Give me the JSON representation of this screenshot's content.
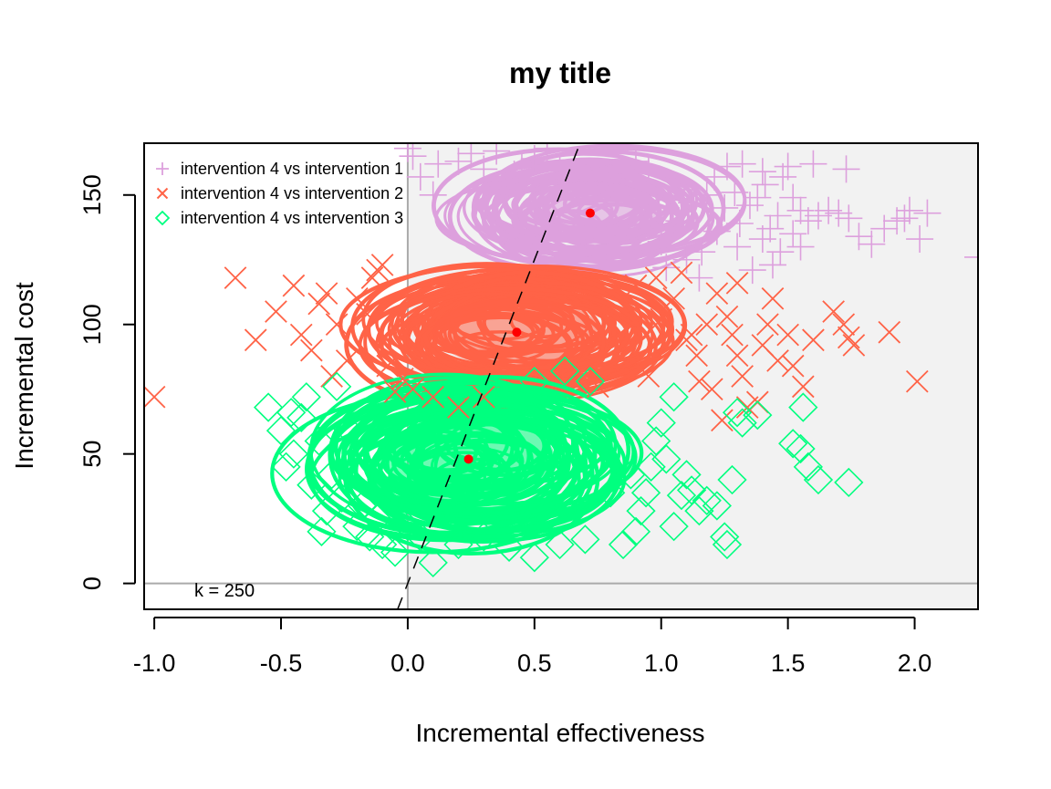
{
  "chart_data": {
    "type": "scatter",
    "title": "my title",
    "xlabel": "Incremental effectiveness",
    "ylabel": "Incremental cost",
    "xlim": [
      -1.04,
      2.25
    ],
    "ylim": [
      -10,
      170
    ],
    "x_ticks": [
      -1.0,
      -0.5,
      0.0,
      0.5,
      1.0,
      1.5,
      2.0
    ],
    "x_tick_labels": [
      "-1.0",
      "-0.5",
      "0.0",
      "0.5",
      "1.0",
      "1.5",
      "2.0"
    ],
    "y_ticks": [
      0,
      50,
      100,
      150
    ],
    "y_tick_labels": [
      "0",
      "50",
      "100",
      "150"
    ],
    "wtp_line": {
      "label": "k = 250",
      "slope": 250
    },
    "shaded_region": {
      "x_from": 0,
      "color": "#f2f2f2"
    },
    "mean_point_color": "#ff0000",
    "legend_position": "top-left",
    "series": [
      {
        "name": "intervention 4 vs intervention 1",
        "marker": "plus",
        "color": "#dda0dd",
        "mean": {
          "x": 0.72,
          "y": 143
        },
        "points": [
          [
            1.03,
            148
          ],
          [
            1.09,
            152
          ],
          [
            1.12,
            147
          ],
          [
            1.18,
            150
          ],
          [
            1.21,
            157
          ],
          [
            1.25,
            145
          ],
          [
            1.29,
            151
          ],
          [
            1.31,
            139
          ],
          [
            1.35,
            146
          ],
          [
            1.38,
            149
          ],
          [
            1.41,
            154
          ],
          [
            1.43,
            137
          ],
          [
            1.46,
            142
          ],
          [
            1.48,
            157
          ],
          [
            1.52,
            149
          ],
          [
            1.55,
            144
          ],
          [
            1.58,
            140
          ],
          [
            1.62,
            142
          ],
          [
            1.66,
            144
          ],
          [
            1.7,
            143
          ],
          [
            1.74,
            141
          ],
          [
            1.78,
            134
          ],
          [
            1.83,
            131
          ],
          [
            1.88,
            137
          ],
          [
            1.93,
            140
          ],
          [
            1.96,
            141
          ],
          [
            1.98,
            144
          ],
          [
            2.05,
            143
          ],
          [
            2.02,
            133
          ],
          [
            1.55,
            130
          ],
          [
            1.47,
            128
          ],
          [
            1.4,
            133
          ],
          [
            1.3,
            130
          ],
          [
            1.22,
            136
          ],
          [
            1.16,
            128
          ],
          [
            1.1,
            125
          ],
          [
            1.02,
            122
          ],
          [
            1.15,
            118
          ],
          [
            1.36,
            121
          ],
          [
            1.44,
            123
          ],
          [
            1.6,
            162
          ],
          [
            1.73,
            160
          ],
          [
            1.5,
            161
          ],
          [
            1.4,
            159
          ],
          [
            1.32,
            162
          ],
          [
            1.26,
            161
          ],
          [
            2.25,
            126
          ],
          [
            1.52,
            135
          ],
          [
            1.07,
            140
          ],
          [
            1.0,
            132
          ],
          [
            0.95,
            160
          ],
          [
            0.9,
            163
          ],
          [
            0.85,
            157
          ],
          [
            0.6,
            160
          ],
          [
            0.5,
            164
          ],
          [
            0.42,
            158
          ],
          [
            0.3,
            160
          ],
          [
            0.2,
            163
          ],
          [
            0.12,
            162
          ],
          [
            0.05,
            157
          ],
          [
            0.02,
            165
          ],
          [
            0.1,
            150
          ],
          [
            0.0,
            168
          ],
          [
            0.25,
            166
          ],
          [
            0.35,
            167
          ],
          [
            0.45,
            161
          ],
          [
            0.55,
            168
          ]
        ]
      },
      {
        "name": "intervention 4 vs intervention 2",
        "marker": "cross",
        "color": "#ff6347",
        "mean": {
          "x": 0.43,
          "y": 97
        },
        "points": [
          [
            -1.0,
            72
          ],
          [
            -0.68,
            118
          ],
          [
            -0.6,
            94
          ],
          [
            -0.52,
            105
          ],
          [
            -0.45,
            115
          ],
          [
            -0.42,
            96
          ],
          [
            -0.38,
            90
          ],
          [
            -0.35,
            108
          ],
          [
            -0.32,
            112
          ],
          [
            -0.3,
            80
          ],
          [
            -0.28,
            100
          ],
          [
            -0.24,
            86
          ],
          [
            -0.2,
            110
          ],
          [
            -0.16,
            104
          ],
          [
            -0.14,
            118
          ],
          [
            -0.12,
            121
          ],
          [
            -0.1,
            123
          ],
          [
            -0.08,
            84
          ],
          [
            -0.05,
            74
          ],
          [
            -0.02,
            79
          ],
          [
            0.02,
            75
          ],
          [
            0.1,
            72
          ],
          [
            0.2,
            68
          ],
          [
            0.3,
            72
          ],
          [
            0.75,
            76
          ],
          [
            0.95,
            80
          ],
          [
            1.0,
            102
          ],
          [
            1.05,
            110
          ],
          [
            1.08,
            120
          ],
          [
            1.1,
            94
          ],
          [
            1.14,
            88
          ],
          [
            1.18,
            100
          ],
          [
            1.22,
            112
          ],
          [
            1.26,
            103
          ],
          [
            1.28,
            96
          ],
          [
            1.3,
            88
          ],
          [
            1.32,
            80
          ],
          [
            1.34,
            68
          ],
          [
            1.38,
            70
          ],
          [
            1.4,
            92
          ],
          [
            1.42,
            100
          ],
          [
            1.44,
            110
          ],
          [
            1.46,
            86
          ],
          [
            1.5,
            96
          ],
          [
            1.52,
            84
          ],
          [
            1.56,
            76
          ],
          [
            1.6,
            94
          ],
          [
            1.68,
            105
          ],
          [
            1.72,
            100
          ],
          [
            1.74,
            95
          ],
          [
            1.76,
            92
          ],
          [
            1.9,
            97
          ],
          [
            2.01,
            78
          ],
          [
            1.2,
            75
          ],
          [
            1.3,
            116
          ],
          [
            1.24,
            63
          ],
          [
            1.12,
            96
          ],
          [
            0.9,
            115
          ],
          [
            0.98,
            118
          ],
          [
            1.15,
            78
          ]
        ]
      },
      {
        "name": "intervention 4 vs intervention 3",
        "marker": "diamond",
        "color": "#00ff7f",
        "mean": {
          "x": 0.24,
          "y": 48
        },
        "points": [
          [
            -0.55,
            68
          ],
          [
            -0.5,
            59
          ],
          [
            -0.46,
            66
          ],
          [
            -0.48,
            45
          ],
          [
            -0.45,
            50
          ],
          [
            -0.42,
            64
          ],
          [
            -0.4,
            72
          ],
          [
            -0.38,
            38
          ],
          [
            -0.35,
            55
          ],
          [
            -0.34,
            20
          ],
          [
            -0.32,
            28
          ],
          [
            -0.3,
            42
          ],
          [
            -0.28,
            76
          ],
          [
            -0.26,
            33
          ],
          [
            -0.24,
            60
          ],
          [
            -0.2,
            22
          ],
          [
            -0.18,
            30
          ],
          [
            -0.15,
            18
          ],
          [
            -0.12,
            25
          ],
          [
            -0.1,
            15
          ],
          [
            -0.05,
            12
          ],
          [
            0.0,
            22
          ],
          [
            0.05,
            18
          ],
          [
            0.1,
            8
          ],
          [
            0.2,
            15
          ],
          [
            0.3,
            18
          ],
          [
            0.4,
            14
          ],
          [
            0.5,
            10
          ],
          [
            0.6,
            15
          ],
          [
            0.7,
            17
          ],
          [
            0.85,
            15
          ],
          [
            0.9,
            20
          ],
          [
            0.92,
            28
          ],
          [
            0.94,
            35
          ],
          [
            0.96,
            45
          ],
          [
            0.98,
            55
          ],
          [
            1.0,
            62
          ],
          [
            1.02,
            48
          ],
          [
            1.05,
            22
          ],
          [
            1.08,
            34
          ],
          [
            1.1,
            42
          ],
          [
            1.12,
            36
          ],
          [
            1.15,
            28
          ],
          [
            1.18,
            32
          ],
          [
            1.22,
            30
          ],
          [
            1.25,
            18
          ],
          [
            1.26,
            15
          ],
          [
            1.28,
            40
          ],
          [
            1.3,
            66
          ],
          [
            1.32,
            62
          ],
          [
            1.38,
            65
          ],
          [
            1.56,
            68
          ],
          [
            1.52,
            54
          ],
          [
            1.55,
            52
          ],
          [
            1.58,
            45
          ],
          [
            1.62,
            40
          ],
          [
            1.74,
            39
          ],
          [
            0.8,
            35
          ],
          [
            0.88,
            42
          ],
          [
            1.05,
            72
          ],
          [
            0.72,
            78
          ],
          [
            0.62,
            82
          ],
          [
            0.5,
            78
          ]
        ]
      }
    ]
  }
}
